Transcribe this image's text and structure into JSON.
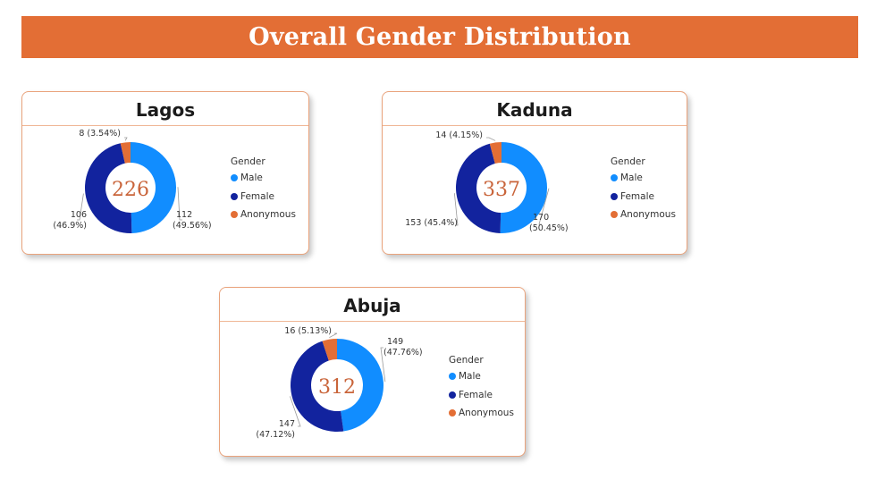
{
  "header": {
    "title": "Overall Gender Distribution"
  },
  "colors": {
    "Male": "#118dff",
    "Female": "#12239e",
    "Anonymous": "#e36e35",
    "banner": "#e36e35",
    "card_border": "#e9a37c",
    "center_value": "#c9643a"
  },
  "legend": {
    "title": "Gender",
    "items": [
      "Male",
      "Female",
      "Anonymous"
    ]
  },
  "chart_data": [
    {
      "type": "pie",
      "title": "Lagos",
      "total_label": "226",
      "categories": [
        "Male",
        "Female",
        "Anonymous"
      ],
      "values": [
        112,
        106,
        8
      ],
      "data_labels": [
        {
          "value": "112",
          "percent": "(49.56%)"
        },
        {
          "value": "106",
          "percent": "(46.9%)"
        },
        {
          "value": "8 (3.54%)",
          "percent": ""
        }
      ]
    },
    {
      "type": "pie",
      "title": "Kaduna",
      "total_label": "337",
      "categories": [
        "Male",
        "Female",
        "Anonymous"
      ],
      "values": [
        170,
        153,
        14
      ],
      "data_labels": [
        {
          "value": "170",
          "percent": "(50.45%)"
        },
        {
          "value": "153 (45.4%)",
          "percent": ""
        },
        {
          "value": "14 (4.15%)",
          "percent": ""
        }
      ]
    },
    {
      "type": "pie",
      "title": "Abuja",
      "total_label": "312",
      "categories": [
        "Male",
        "Female",
        "Anonymous"
      ],
      "values": [
        149,
        147,
        16
      ],
      "data_labels": [
        {
          "value": "149",
          "percent": "(47.76%)"
        },
        {
          "value": "147",
          "percent": "(47.12%)"
        },
        {
          "value": "16 (5.13%)",
          "percent": ""
        }
      ]
    }
  ]
}
